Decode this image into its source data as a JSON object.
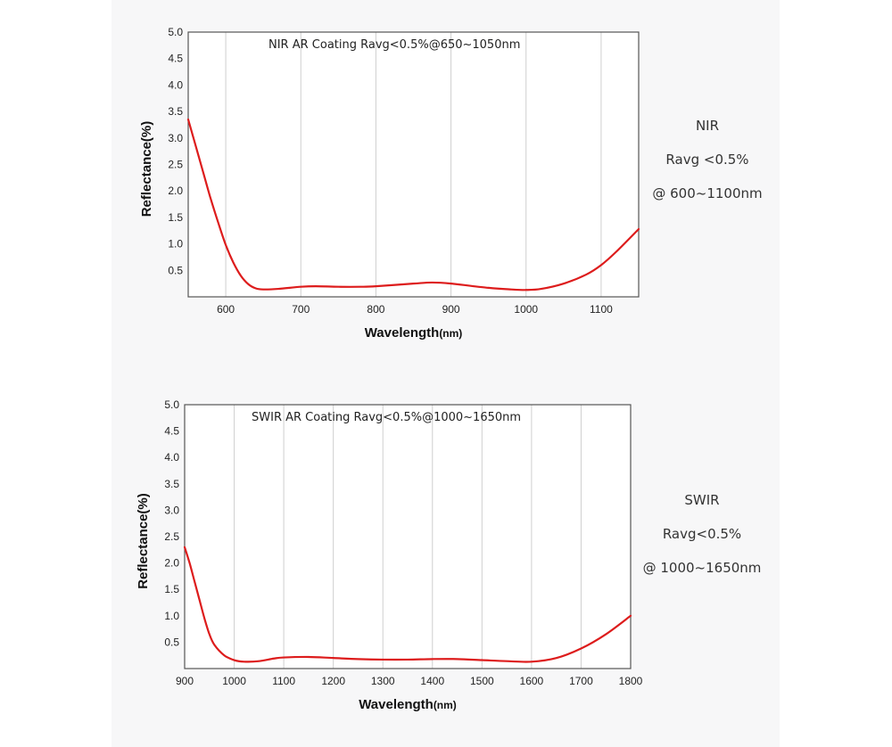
{
  "colors": {
    "curve": "#dd1c1c",
    "grid": "#cfcfcf",
    "frame": "#555555",
    "panel": "#f7f7f8"
  },
  "chart_data": [
    {
      "type": "line",
      "title": "NIR AR Coating Ravg<0.5%@650~1050nm",
      "xlabel": "Wavelength",
      "xunit": "(nm)",
      "ylabel": "Reflectance(%)",
      "xlim": [
        550,
        1150
      ],
      "ylim": [
        0,
        5
      ],
      "xticks": [
        600,
        700,
        800,
        900,
        1000,
        1100
      ],
      "yticks": [
        0.5,
        1.0,
        1.5,
        2.0,
        2.5,
        3.0,
        3.5,
        4.0,
        4.5,
        5.0
      ],
      "ytick_labels": [
        "0.5",
        "1.0",
        "1.5",
        "2.0",
        "2.5",
        "3.0",
        "3.5",
        "4.0",
        "4.5",
        "5.0"
      ],
      "grid": true,
      "series": [
        {
          "x": [
            550,
            560,
            570,
            580,
            590,
            600,
            610,
            620,
            630,
            640,
            650,
            670,
            700,
            720,
            750,
            780,
            800,
            850,
            875,
            900,
            950,
            980,
            1000,
            1020,
            1050,
            1080,
            1100,
            1120,
            1150
          ],
          "y": [
            3.35,
            2.85,
            2.35,
            1.85,
            1.4,
            0.98,
            0.65,
            0.4,
            0.24,
            0.16,
            0.14,
            0.15,
            0.19,
            0.2,
            0.19,
            0.19,
            0.2,
            0.25,
            0.27,
            0.25,
            0.17,
            0.14,
            0.13,
            0.15,
            0.25,
            0.42,
            0.6,
            0.85,
            1.28
          ]
        }
      ]
    },
    {
      "type": "line",
      "title": "SWIR AR Coating Ravg<0.5%@1000~1650nm",
      "xlabel": "Wavelength",
      "xunit": "(nm)",
      "ylabel": "Reflectance(%)",
      "xlim": [
        900,
        1800
      ],
      "ylim": [
        0,
        5
      ],
      "xticks": [
        900,
        1000,
        1100,
        1200,
        1300,
        1400,
        1500,
        1600,
        1700,
        1800
      ],
      "yticks": [
        0.5,
        1.0,
        1.5,
        2.0,
        2.5,
        3.0,
        3.5,
        4.0,
        4.5,
        5.0
      ],
      "ytick_labels": [
        "0.5",
        "1.0",
        "1.5",
        "2.0",
        "2.5",
        "3.0",
        "3.5",
        "4.0",
        "4.5",
        "5.0"
      ],
      "grid": true,
      "series": [
        {
          "x": [
            900,
            910,
            920,
            930,
            940,
            950,
            960,
            980,
            1000,
            1020,
            1050,
            1080,
            1100,
            1150,
            1200,
            1250,
            1300,
            1350,
            1400,
            1450,
            1500,
            1550,
            1600,
            1650,
            1700,
            1750,
            1800
          ],
          "y": [
            2.3,
            2.0,
            1.65,
            1.3,
            0.95,
            0.65,
            0.45,
            0.25,
            0.16,
            0.13,
            0.14,
            0.19,
            0.21,
            0.22,
            0.2,
            0.18,
            0.17,
            0.17,
            0.18,
            0.18,
            0.16,
            0.14,
            0.13,
            0.2,
            0.38,
            0.65,
            1.0
          ]
        }
      ]
    }
  ],
  "annotations": [
    {
      "lines": [
        "NIR",
        "Ravg <0.5%",
        "@ 600~1100nm"
      ]
    },
    {
      "lines": [
        "SWIR",
        "Ravg<0.5%",
        "@ 1000~1650nm"
      ]
    }
  ]
}
